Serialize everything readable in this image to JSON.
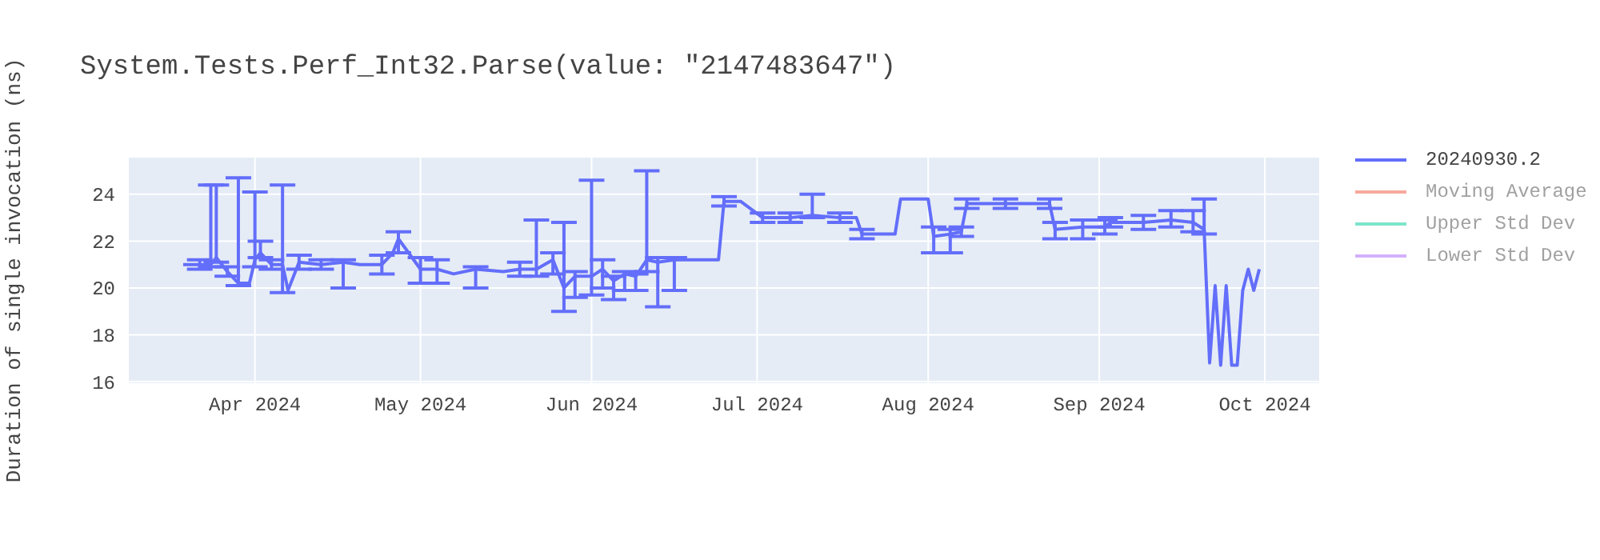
{
  "chart_data": {
    "type": "line",
    "title": "System.Tests.Perf_Int32.Parse(value: \"2147483647\")",
    "ylabel": "Duration of single invocation (ns)",
    "xlim": [
      "2024-03-09",
      "2024-10-11"
    ],
    "ylim": [
      15.9,
      25.6
    ],
    "yticks": [
      16,
      18,
      20,
      22,
      24
    ],
    "xticks": [
      {
        "value": "2024-04-01",
        "label": "Apr 2024"
      },
      {
        "value": "2024-05-01",
        "label": "May 2024"
      },
      {
        "value": "2024-06-01",
        "label": "Jun 2024"
      },
      {
        "value": "2024-07-01",
        "label": "Jul 2024"
      },
      {
        "value": "2024-08-01",
        "label": "Aug 2024"
      },
      {
        "value": "2024-09-01",
        "label": "Sep 2024"
      },
      {
        "value": "2024-10-01",
        "label": "Oct 2024"
      }
    ],
    "grid": true,
    "legend": "top right",
    "marker": "none",
    "line_style": "solid",
    "series": [
      {
        "name": "20240930.2",
        "color": "#636efa",
        "x": [
          "2024-03-19",
          "2024-03-22",
          "2024-03-24",
          "2024-03-25",
          "2024-03-27",
          "2024-03-29",
          "2024-03-31",
          "2024-04-01",
          "2024-04-02",
          "2024-04-04",
          "2024-04-06",
          "2024-04-07",
          "2024-04-09",
          "2024-04-13",
          "2024-04-17",
          "2024-04-20",
          "2024-04-24",
          "2024-04-26",
          "2024-04-27",
          "2024-05-01",
          "2024-05-04",
          "2024-05-07",
          "2024-05-11",
          "2024-05-16",
          "2024-05-19",
          "2024-05-22",
          "2024-05-25",
          "2024-05-27",
          "2024-05-29",
          "2024-06-01",
          "2024-06-03",
          "2024-06-05",
          "2024-06-07",
          "2024-06-09",
          "2024-06-11",
          "2024-06-13",
          "2024-06-16",
          "2024-06-20",
          "2024-06-24",
          "2024-06-25",
          "2024-06-28",
          "2024-07-02",
          "2024-07-07",
          "2024-07-11",
          "2024-07-16",
          "2024-07-19",
          "2024-07-20",
          "2024-07-26",
          "2024-07-27",
          "2024-08-01",
          "2024-08-02",
          "2024-08-05",
          "2024-08-07",
          "2024-08-08",
          "2024-08-15",
          "2024-08-23",
          "2024-08-24",
          "2024-08-29",
          "2024-09-02",
          "2024-09-03",
          "2024-09-09",
          "2024-09-14",
          "2024-09-18",
          "2024-09-20",
          "2024-09-21",
          "2024-09-22",
          "2024-09-23",
          "2024-09-24",
          "2024-09-25",
          "2024-09-26",
          "2024-09-27",
          "2024-09-28",
          "2024-09-29",
          "2024-09-30"
        ],
        "values": [
          21.0,
          21.0,
          21.0,
          21.3,
          20.7,
          20.2,
          20.2,
          21.2,
          21.5,
          21.0,
          21.0,
          19.9,
          21.1,
          21.0,
          21.1,
          21.0,
          21.0,
          21.5,
          22.1,
          20.8,
          20.8,
          20.6,
          20.8,
          20.7,
          20.8,
          20.8,
          21.2,
          20.0,
          20.5,
          20.5,
          20.8,
          20.3,
          20.6,
          20.5,
          21.2,
          21.1,
          21.2,
          21.2,
          21.2,
          23.7,
          23.7,
          23.0,
          23.0,
          23.1,
          23.0,
          23.0,
          22.3,
          22.3,
          23.8,
          23.8,
          22.2,
          22.3,
          22.4,
          23.6,
          23.6,
          23.6,
          22.5,
          22.6,
          22.6,
          22.8,
          22.8,
          22.9,
          22.8,
          22.5,
          16.8,
          20.1,
          16.7,
          20.1,
          16.7,
          16.7,
          19.9,
          20.8,
          19.9,
          20.8
        ],
        "errors": [
          null,
          0.2,
          [
            20.9,
            24.4
          ],
          [
            21.1,
            24.4
          ],
          0.2,
          [
            20.1,
            24.7
          ],
          null,
          [
            20.9,
            24.1
          ],
          [
            21.3,
            22.0
          ],
          0.2,
          [
            19.8,
            24.4
          ],
          null,
          0.3,
          0.2,
          [
            20.0,
            21.2
          ],
          null,
          0.4,
          null,
          [
            21.5,
            22.4
          ],
          [
            20.2,
            21.3
          ],
          [
            20.2,
            21.2
          ],
          null,
          [
            20.0,
            20.9
          ],
          null,
          0.3,
          [
            20.5,
            22.9
          ],
          [
            20.6,
            21.5
          ],
          [
            19.0,
            22.8
          ],
          [
            19.6,
            20.7
          ],
          [
            19.7,
            24.6
          ],
          [
            20.0,
            21.2
          ],
          [
            19.5,
            20.5
          ],
          [
            19.9,
            20.7
          ],
          [
            19.9,
            20.6
          ],
          [
            20.7,
            25.0
          ],
          [
            19.2,
            21.3
          ],
          [
            19.9,
            21.3
          ],
          null,
          null,
          0.2,
          null,
          0.2,
          0.2,
          [
            23.0,
            24.0
          ],
          0.2,
          null,
          0.2,
          null,
          null,
          null,
          [
            21.5,
            22.6
          ],
          [
            21.5,
            22.5
          ],
          0.2,
          0.2,
          0.2,
          0.2,
          [
            22.1,
            22.8
          ],
          [
            22.1,
            22.9
          ],
          0.3,
          0.2,
          0.3,
          [
            22.6,
            23.3
          ],
          [
            22.4,
            23.3
          ],
          [
            22.3,
            23.8
          ],
          null,
          null,
          null,
          null,
          null,
          null,
          null,
          null,
          null,
          null
        ]
      },
      {
        "name": "Moving Average",
        "color": "#ef553b"
      },
      {
        "name": "Upper Std Dev",
        "color": "#00cc96"
      },
      {
        "name": "Lower Std Dev",
        "color": "#ab63fa"
      }
    ]
  }
}
